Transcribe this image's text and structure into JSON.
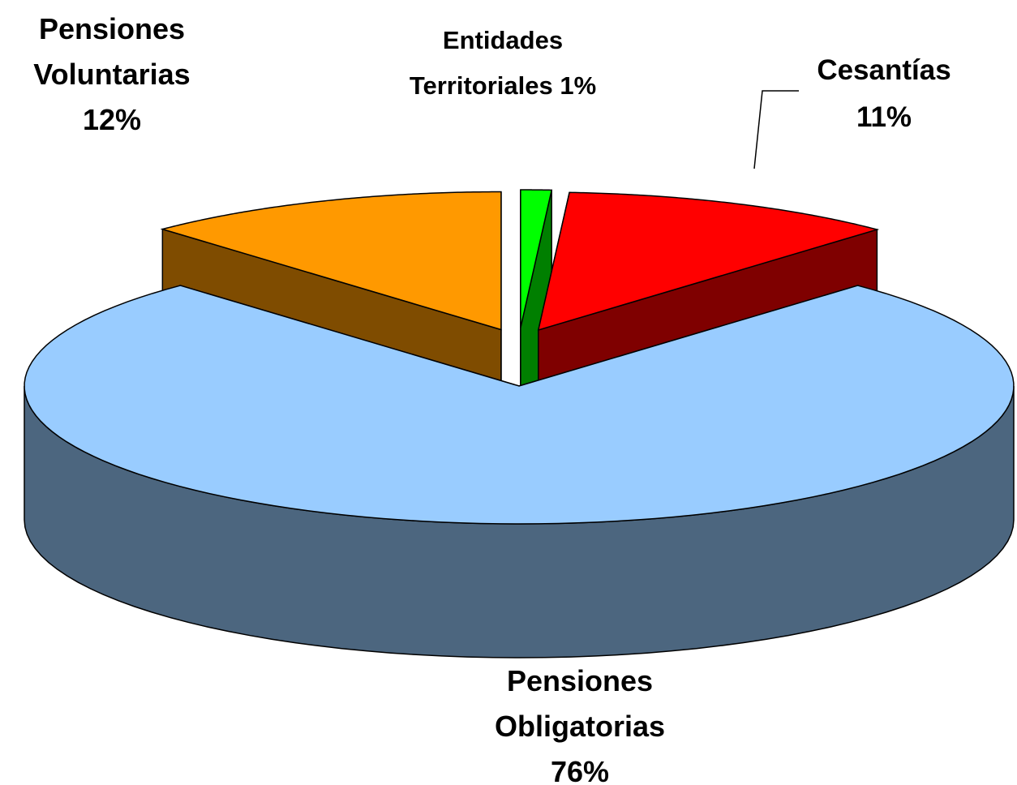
{
  "chart_data": {
    "type": "pie3d",
    "categories": [
      "Entidades Territoriales",
      "Cesantías",
      "Pensiones Obligatorias",
      "Pensiones Voluntarias"
    ],
    "values": [
      1,
      11,
      76,
      12
    ],
    "value_labels": [
      "1%",
      "11%",
      "76%",
      "12%"
    ],
    "colors": [
      "#00ff00",
      "#ff0000",
      "#99ccff",
      "#ff9900"
    ]
  }
}
